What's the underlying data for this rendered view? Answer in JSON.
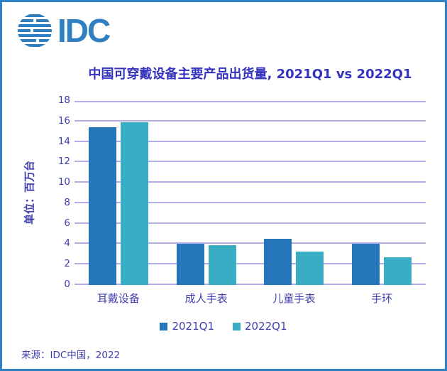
{
  "logo": {
    "text": "IDC"
  },
  "source": "来源：IDC中国，2022",
  "colors": {
    "brand_blue": "#2e80c2",
    "bar_2021": "#2376b9",
    "bar_2022": "#38adc3",
    "gridline": "#b3ace6",
    "title_text": "#3333c0",
    "axis_text": "#4140ae"
  },
  "chart_data": {
    "type": "bar",
    "title": "中国可穿戴设备主要产品出货量, 2021Q1 vs 2022Q1",
    "categories": [
      "耳戴设备",
      "成人手表",
      "儿童手表",
      "手环"
    ],
    "series": [
      {
        "name": "2021Q1",
        "color": "#2376b9",
        "values": [
          15.4,
          4.0,
          4.5,
          4.0
        ]
      },
      {
        "name": "2022Q1",
        "color": "#38adc3",
        "values": [
          15.9,
          3.9,
          3.3,
          2.7
        ]
      }
    ],
    "xlabel": "",
    "ylabel": "单位：百万台",
    "ylim": [
      0,
      18
    ],
    "ytick_step": 2,
    "grid": true,
    "legend_position": "bottom"
  }
}
